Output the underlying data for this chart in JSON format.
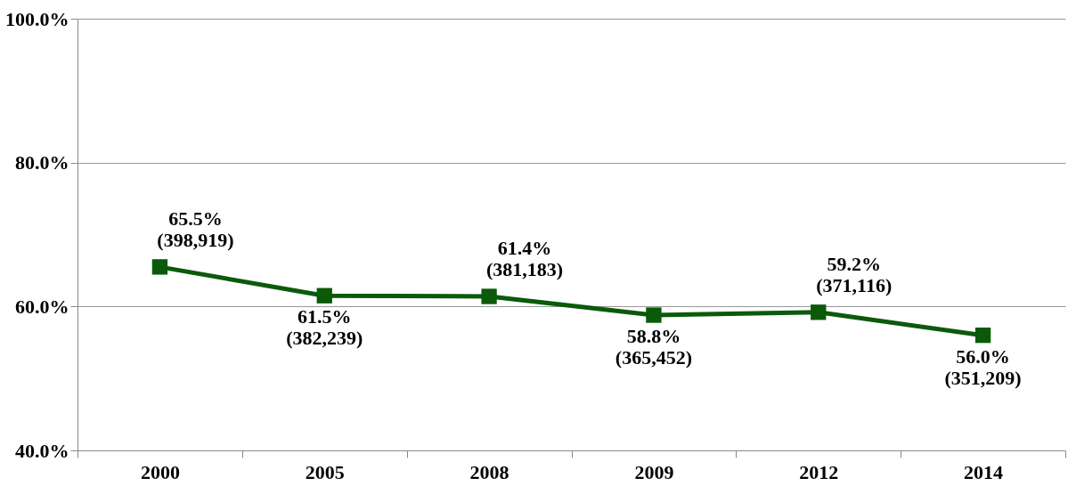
{
  "chart_data": {
    "type": "line",
    "categories": [
      "2000",
      "2005",
      "2008",
      "2009",
      "2012",
      "2014"
    ],
    "series": [
      {
        "color": "#0a5a0a",
        "values": [
          65.5,
          61.5,
          61.4,
          58.8,
          59.2,
          56.0
        ],
        "value_labels": [
          "65.5%\n(398,919)",
          "61.5%\n(382,239)",
          "61.4%\n(381,183)",
          "58.8%\n(365,452)",
          "59.2%\n(371,116)",
          "56.0%\n(351,209)"
        ]
      }
    ],
    "ylim": [
      40,
      100
    ],
    "yticks": [
      {
        "value": 40,
        "label": "40.0%"
      },
      {
        "value": 60,
        "label": "60.0%"
      },
      {
        "value": 80,
        "label": "80.0%"
      },
      {
        "value": 100,
        "label": "100.0%"
      }
    ],
    "grid": "y",
    "marker": "square",
    "line_style": "solid"
  }
}
